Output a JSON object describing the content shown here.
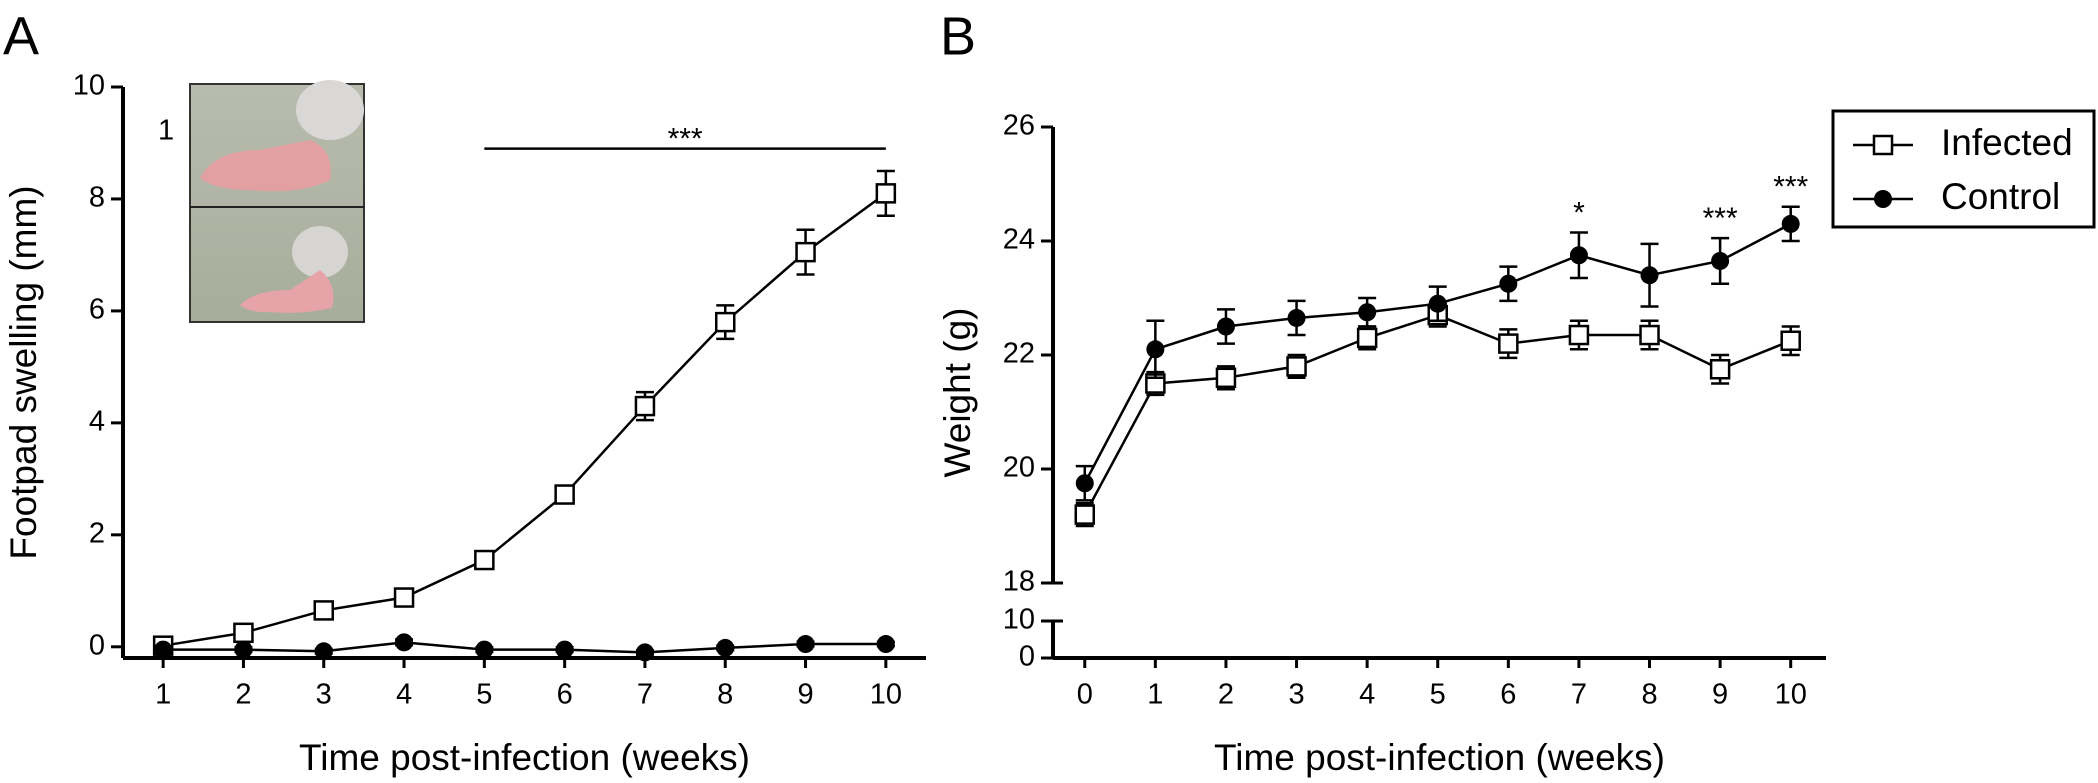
{
  "chart_data": [
    {
      "type": "line",
      "panel_label": "A",
      "inset_label": "1",
      "x_label": "Time post-infection (weeks)",
      "y_label": "Footpad swelling (mm)",
      "x": [
        1,
        2,
        3,
        4,
        5,
        6,
        7,
        8,
        9,
        10
      ],
      "xlim": [
        0.5,
        10.5
      ],
      "xticks": [
        1,
        2,
        3,
        4,
        5,
        6,
        7,
        8,
        9,
        10
      ],
      "ylim": [
        -0.2,
        10
      ],
      "yticks": [
        0,
        2,
        4,
        6,
        8,
        10
      ],
      "series": [
        {
          "name": "Infected",
          "marker": "square",
          "color": "#000",
          "values": [
            0.02,
            0.25,
            0.65,
            0.88,
            1.55,
            2.72,
            4.3,
            5.8,
            7.05,
            8.1
          ],
          "errors": [
            0.05,
            0.05,
            0.05,
            0.08,
            0.1,
            0.12,
            0.25,
            0.3,
            0.4,
            0.4
          ]
        },
        {
          "name": "Control",
          "marker": "circle",
          "color": "#000",
          "values": [
            -0.05,
            -0.05,
            -0.08,
            0.08,
            -0.05,
            -0.05,
            -0.1,
            -0.02,
            0.05,
            0.05
          ],
          "errors": [
            0.04,
            0.04,
            0.04,
            0.05,
            0.04,
            0.04,
            0.04,
            0.04,
            0.04,
            0.04
          ]
        }
      ],
      "annotations": [
        {
          "text": "***",
          "x": [
            5,
            10
          ],
          "y": 8.9
        }
      ]
    },
    {
      "type": "line",
      "panel_label": "B",
      "x_label": "Time post-infection (weeks)",
      "y_label": "Weight (g)",
      "x": [
        0,
        1,
        2,
        3,
        4,
        5,
        6,
        7,
        8,
        9,
        10
      ],
      "xlim": [
        -0.45,
        10.5
      ],
      "xticks": [
        0,
        1,
        2,
        3,
        4,
        5,
        6,
        7,
        8,
        9,
        10
      ],
      "ylim": [
        18,
        26
      ],
      "yticks": [
        18,
        20,
        22,
        24,
        26
      ],
      "ylim_lower": [
        0,
        10
      ],
      "yticks_lower": [
        0,
        10
      ],
      "legend": "upper right",
      "series": [
        {
          "name": "Infected",
          "marker": "square",
          "color": "#000",
          "values": [
            19.2,
            21.5,
            21.6,
            21.8,
            22.3,
            22.7,
            22.2,
            22.35,
            22.35,
            21.75,
            22.25
          ],
          "errors": [
            0.2,
            0.2,
            0.2,
            0.2,
            0.2,
            0.2,
            0.25,
            0.25,
            0.25,
            0.25,
            0.25
          ]
        },
        {
          "name": "Control",
          "marker": "circle",
          "color": "#000",
          "values": [
            19.75,
            22.1,
            22.5,
            22.65,
            22.75,
            22.9,
            23.25,
            23.75,
            23.4,
            23.65,
            24.3
          ],
          "errors": [
            0.3,
            0.5,
            0.3,
            0.3,
            0.25,
            0.3,
            0.3,
            0.4,
            0.55,
            0.4,
            0.3
          ]
        }
      ],
      "annotations": [
        {
          "text": "*",
          "x": 7
        },
        {
          "text": "***",
          "x": 9
        },
        {
          "text": "***",
          "x": 10
        }
      ]
    }
  ]
}
